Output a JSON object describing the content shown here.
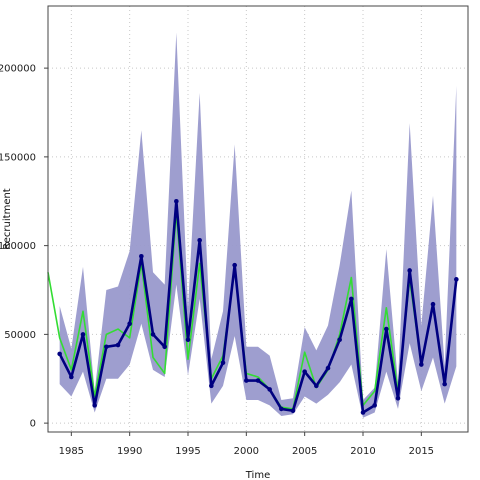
{
  "chart_data": {
    "type": "line",
    "xlabel": "Time",
    "ylabel": "Recruitment",
    "xlim": [
      1983,
      2019
    ],
    "ylim": [
      -5000,
      235000
    ],
    "xticks": [
      1985,
      1990,
      1995,
      2000,
      2005,
      2010,
      2015
    ],
    "xtick_labels": [
      "1985",
      "1990",
      "1995",
      "2000",
      "2005",
      "2010",
      "2015"
    ],
    "yticks": [
      0,
      50000,
      100000,
      150000,
      200000
    ],
    "ytick_labels": [
      "0",
      "50000",
      "100000",
      "150000",
      "200000"
    ],
    "grid": true,
    "series": [
      {
        "role": "band",
        "color": "#9999cc",
        "x": [
          1984,
          1985,
          1986,
          1987,
          1988,
          1989,
          1990,
          1991,
          1992,
          1993,
          1994,
          1995,
          1996,
          1997,
          1998,
          1999,
          2000,
          2001,
          2002,
          2003,
          2004,
          2005,
          2006,
          2007,
          2008,
          2009,
          2010,
          2011,
          2012,
          2013,
          2014,
          2015,
          2016,
          2017,
          2018
        ],
        "lower": [
          22000,
          15000,
          29000,
          6000,
          25000,
          25000,
          33000,
          56000,
          30000,
          26000,
          78000,
          27000,
          70000,
          11000,
          21000,
          49000,
          13000,
          13000,
          10000,
          4000,
          5000,
          15000,
          11000,
          16000,
          23000,
          33000,
          3000,
          6000,
          29000,
          8000,
          45000,
          18000,
          37000,
          11000,
          32000
        ],
        "upper": [
          66000,
          42000,
          88000,
          18000,
          75000,
          77000,
          97000,
          165000,
          85000,
          78000,
          220000,
          65000,
          186000,
          36000,
          63000,
          157000,
          43000,
          43000,
          38000,
          13000,
          14000,
          54000,
          41000,
          55000,
          89000,
          131000,
          13000,
          20000,
          98000,
          23000,
          169000,
          55000,
          128000,
          32000,
          190000
        ]
      },
      {
        "role": "line",
        "color": "#33dd33",
        "x": [
          1983,
          1984,
          1985,
          1986,
          1987,
          1988,
          1989,
          1990,
          1991,
          1992,
          1993,
          1994,
          1995,
          1996,
          1997,
          1998,
          1999,
          2000,
          2001,
          2002,
          2003,
          2004,
          2005,
          2006,
          2007,
          2008,
          2009,
          2010,
          2011,
          2012,
          2013,
          2014,
          2015,
          2016,
          2017,
          2018
        ],
        "values": [
          85000,
          48000,
          30000,
          63000,
          15000,
          50000,
          53000,
          48000,
          90000,
          37000,
          28000,
          119000,
          36000,
          90000,
          25000,
          38000,
          87000,
          28000,
          26000,
          19000,
          9000,
          8000,
          40000,
          20000,
          30000,
          50000,
          82000,
          10000,
          18000,
          65000,
          18000,
          81000,
          33000,
          67000,
          22000,
          81000
        ]
      },
      {
        "role": "line",
        "color": "#000080",
        "markers": true,
        "x": [
          1984,
          1985,
          1986,
          1987,
          1988,
          1989,
          1990,
          1991,
          1992,
          1993,
          1994,
          1995,
          1996,
          1997,
          1998,
          1999,
          2000,
          2001,
          2002,
          2003,
          2004,
          2005,
          2006,
          2007,
          2008,
          2009,
          2010,
          2011,
          2012,
          2013,
          2014,
          2015,
          2016,
          2017,
          2018
        ],
        "values": [
          39000,
          26000,
          50000,
          10000,
          43000,
          44000,
          56000,
          94000,
          50000,
          43000,
          125000,
          47000,
          103000,
          21000,
          34000,
          89000,
          24000,
          24000,
          19000,
          8000,
          7000,
          29000,
          21000,
          31000,
          47000,
          70000,
          6000,
          10000,
          53000,
          14000,
          86000,
          33000,
          67000,
          22000,
          81000
        ]
      }
    ]
  }
}
